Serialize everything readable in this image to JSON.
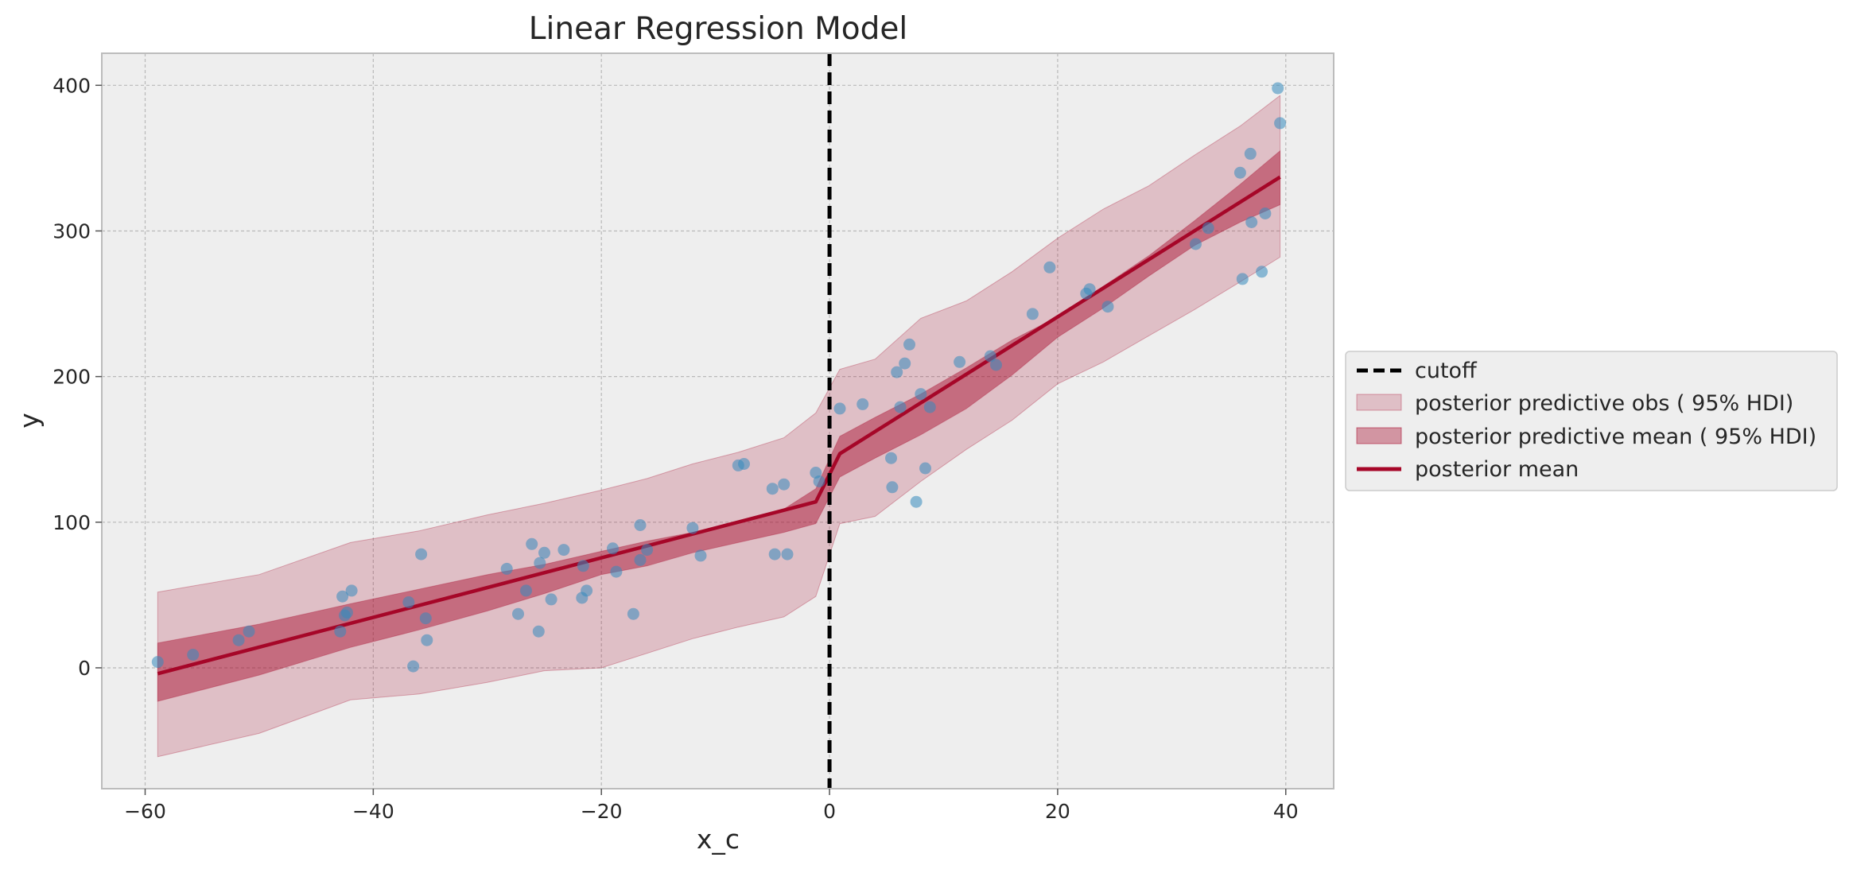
{
  "chart_data": {
    "type": "scatter",
    "title": "Linear Regression Model",
    "xlabel": "x_c",
    "ylabel": "y",
    "xlim": [
      -63.8,
      44.2
    ],
    "ylim": [
      -83,
      422
    ],
    "grid": true,
    "legend_position": "outside right",
    "x_ticks": [
      -60,
      -40,
      -20,
      0,
      20,
      40
    ],
    "x_tick_labels": [
      "−60",
      "−40",
      "−20",
      "0",
      "20",
      "40"
    ],
    "y_ticks": [
      0,
      100,
      200,
      300,
      400
    ],
    "y_tick_labels": [
      "0",
      "100",
      "200",
      "300",
      "400"
    ],
    "cutoff": 0,
    "colors": {
      "plot_bg": "#eeeeee",
      "grid": "#b9b9b9",
      "points": "#348abd",
      "posterior": "#a60628",
      "cutoff": "#000000"
    },
    "points": [
      [
        -58.9,
        4
      ],
      [
        -55.8,
        9
      ],
      [
        -51.8,
        19
      ],
      [
        -50.9,
        25
      ],
      [
        -42.9,
        25
      ],
      [
        -42.5,
        36
      ],
      [
        -42.3,
        38
      ],
      [
        -42.7,
        49
      ],
      [
        -41.9,
        53
      ],
      [
        -36.9,
        45
      ],
      [
        -36.5,
        1
      ],
      [
        -35.8,
        78
      ],
      [
        -35.4,
        34
      ],
      [
        -35.3,
        19
      ],
      [
        -28.3,
        68
      ],
      [
        -27.3,
        37
      ],
      [
        -26.6,
        53
      ],
      [
        -26.1,
        85
      ],
      [
        -25.5,
        25
      ],
      [
        -25.4,
        72
      ],
      [
        -25.0,
        79
      ],
      [
        -24.4,
        47
      ],
      [
        -23.3,
        81
      ],
      [
        -21.6,
        70
      ],
      [
        -21.7,
        48
      ],
      [
        -21.3,
        53
      ],
      [
        -19.0,
        82
      ],
      [
        -18.7,
        66
      ],
      [
        -17.2,
        37
      ],
      [
        -16.6,
        74
      ],
      [
        -16.6,
        98
      ],
      [
        -16.0,
        81
      ],
      [
        -12.0,
        96
      ],
      [
        -11.3,
        77
      ],
      [
        -8.0,
        139
      ],
      [
        -7.5,
        140
      ],
      [
        -5.0,
        123
      ],
      [
        -4.8,
        78
      ],
      [
        -4.0,
        126
      ],
      [
        -3.7,
        78
      ],
      [
        -1.2,
        134
      ],
      [
        -0.9,
        128
      ],
      [
        0.9,
        178
      ],
      [
        2.9,
        181
      ],
      [
        5.4,
        144
      ],
      [
        5.5,
        124
      ],
      [
        5.9,
        203
      ],
      [
        6.2,
        179
      ],
      [
        6.6,
        209
      ],
      [
        7.0,
        222
      ],
      [
        7.6,
        114
      ],
      [
        8.0,
        188
      ],
      [
        8.4,
        137
      ],
      [
        8.8,
        179
      ],
      [
        11.4,
        210
      ],
      [
        14.1,
        214
      ],
      [
        14.6,
        208
      ],
      [
        17.8,
        243
      ],
      [
        19.3,
        275
      ],
      [
        22.5,
        257
      ],
      [
        22.8,
        260
      ],
      [
        24.4,
        248
      ],
      [
        32.1,
        291
      ],
      [
        33.2,
        302
      ],
      [
        36.0,
        340
      ],
      [
        36.2,
        267
      ],
      [
        36.9,
        353
      ],
      [
        37.0,
        306
      ],
      [
        37.9,
        272
      ],
      [
        38.2,
        312
      ],
      [
        39.3,
        398
      ],
      [
        39.5,
        374
      ]
    ],
    "series": [
      {
        "name": "posterior predictive obs ( 95% HDI)",
        "kind": "band",
        "x": [
          -58.9,
          -50,
          -42,
          -36,
          -30,
          -25,
          -20,
          -16,
          -12,
          -8,
          -4,
          -1.2,
          0.9,
          4,
          8,
          12,
          16,
          20,
          24,
          28,
          32,
          36,
          39.5
        ],
        "lower": [
          -61,
          -45,
          -22,
          -18,
          -10,
          -2,
          0,
          10,
          20,
          28,
          35,
          49,
          99,
          104,
          128,
          150,
          170,
          195,
          210,
          228,
          246,
          265,
          282
        ],
        "upper": [
          52,
          64,
          86,
          94,
          105,
          113,
          122,
          130,
          140,
          148,
          158,
          175,
          205,
          212,
          240,
          252,
          272,
          295,
          315,
          331,
          352,
          372,
          393
        ]
      },
      {
        "name": "posterior predictive mean ( 95% HDI)",
        "kind": "band",
        "x": [
          -58.9,
          -50,
          -42,
          -36,
          -30,
          -25,
          -20,
          -16,
          -12,
          -8,
          -4,
          -1.2,
          0.9,
          4,
          8,
          12,
          16,
          20,
          24,
          28,
          32,
          36,
          39.5
        ],
        "lower": [
          -23,
          -5,
          14,
          26,
          39,
          51,
          64,
          70,
          79,
          86,
          93,
          99,
          131,
          144,
          160,
          178,
          201,
          227,
          247,
          269,
          290,
          306,
          318
        ],
        "upper": [
          17,
          30,
          44,
          54,
          64,
          71,
          80,
          87,
          93,
          101,
          109,
          123,
          159,
          172,
          188,
          206,
          225,
          241,
          262,
          283,
          307,
          332,
          355
        ]
      },
      {
        "name": "posterior mean",
        "kind": "line",
        "x": [
          -58.9,
          -1.2,
          0.9,
          39.5
        ],
        "y": [
          -4,
          114,
          147,
          337
        ]
      }
    ],
    "legend": [
      {
        "label": "cutoff",
        "kind": "dashed-line"
      },
      {
        "label": "posterior predictive obs ( 95% HDI)",
        "kind": "light-band"
      },
      {
        "label": "posterior predictive mean ( 95% HDI)",
        "kind": "dark-band"
      },
      {
        "label": "posterior mean",
        "kind": "line"
      }
    ]
  }
}
